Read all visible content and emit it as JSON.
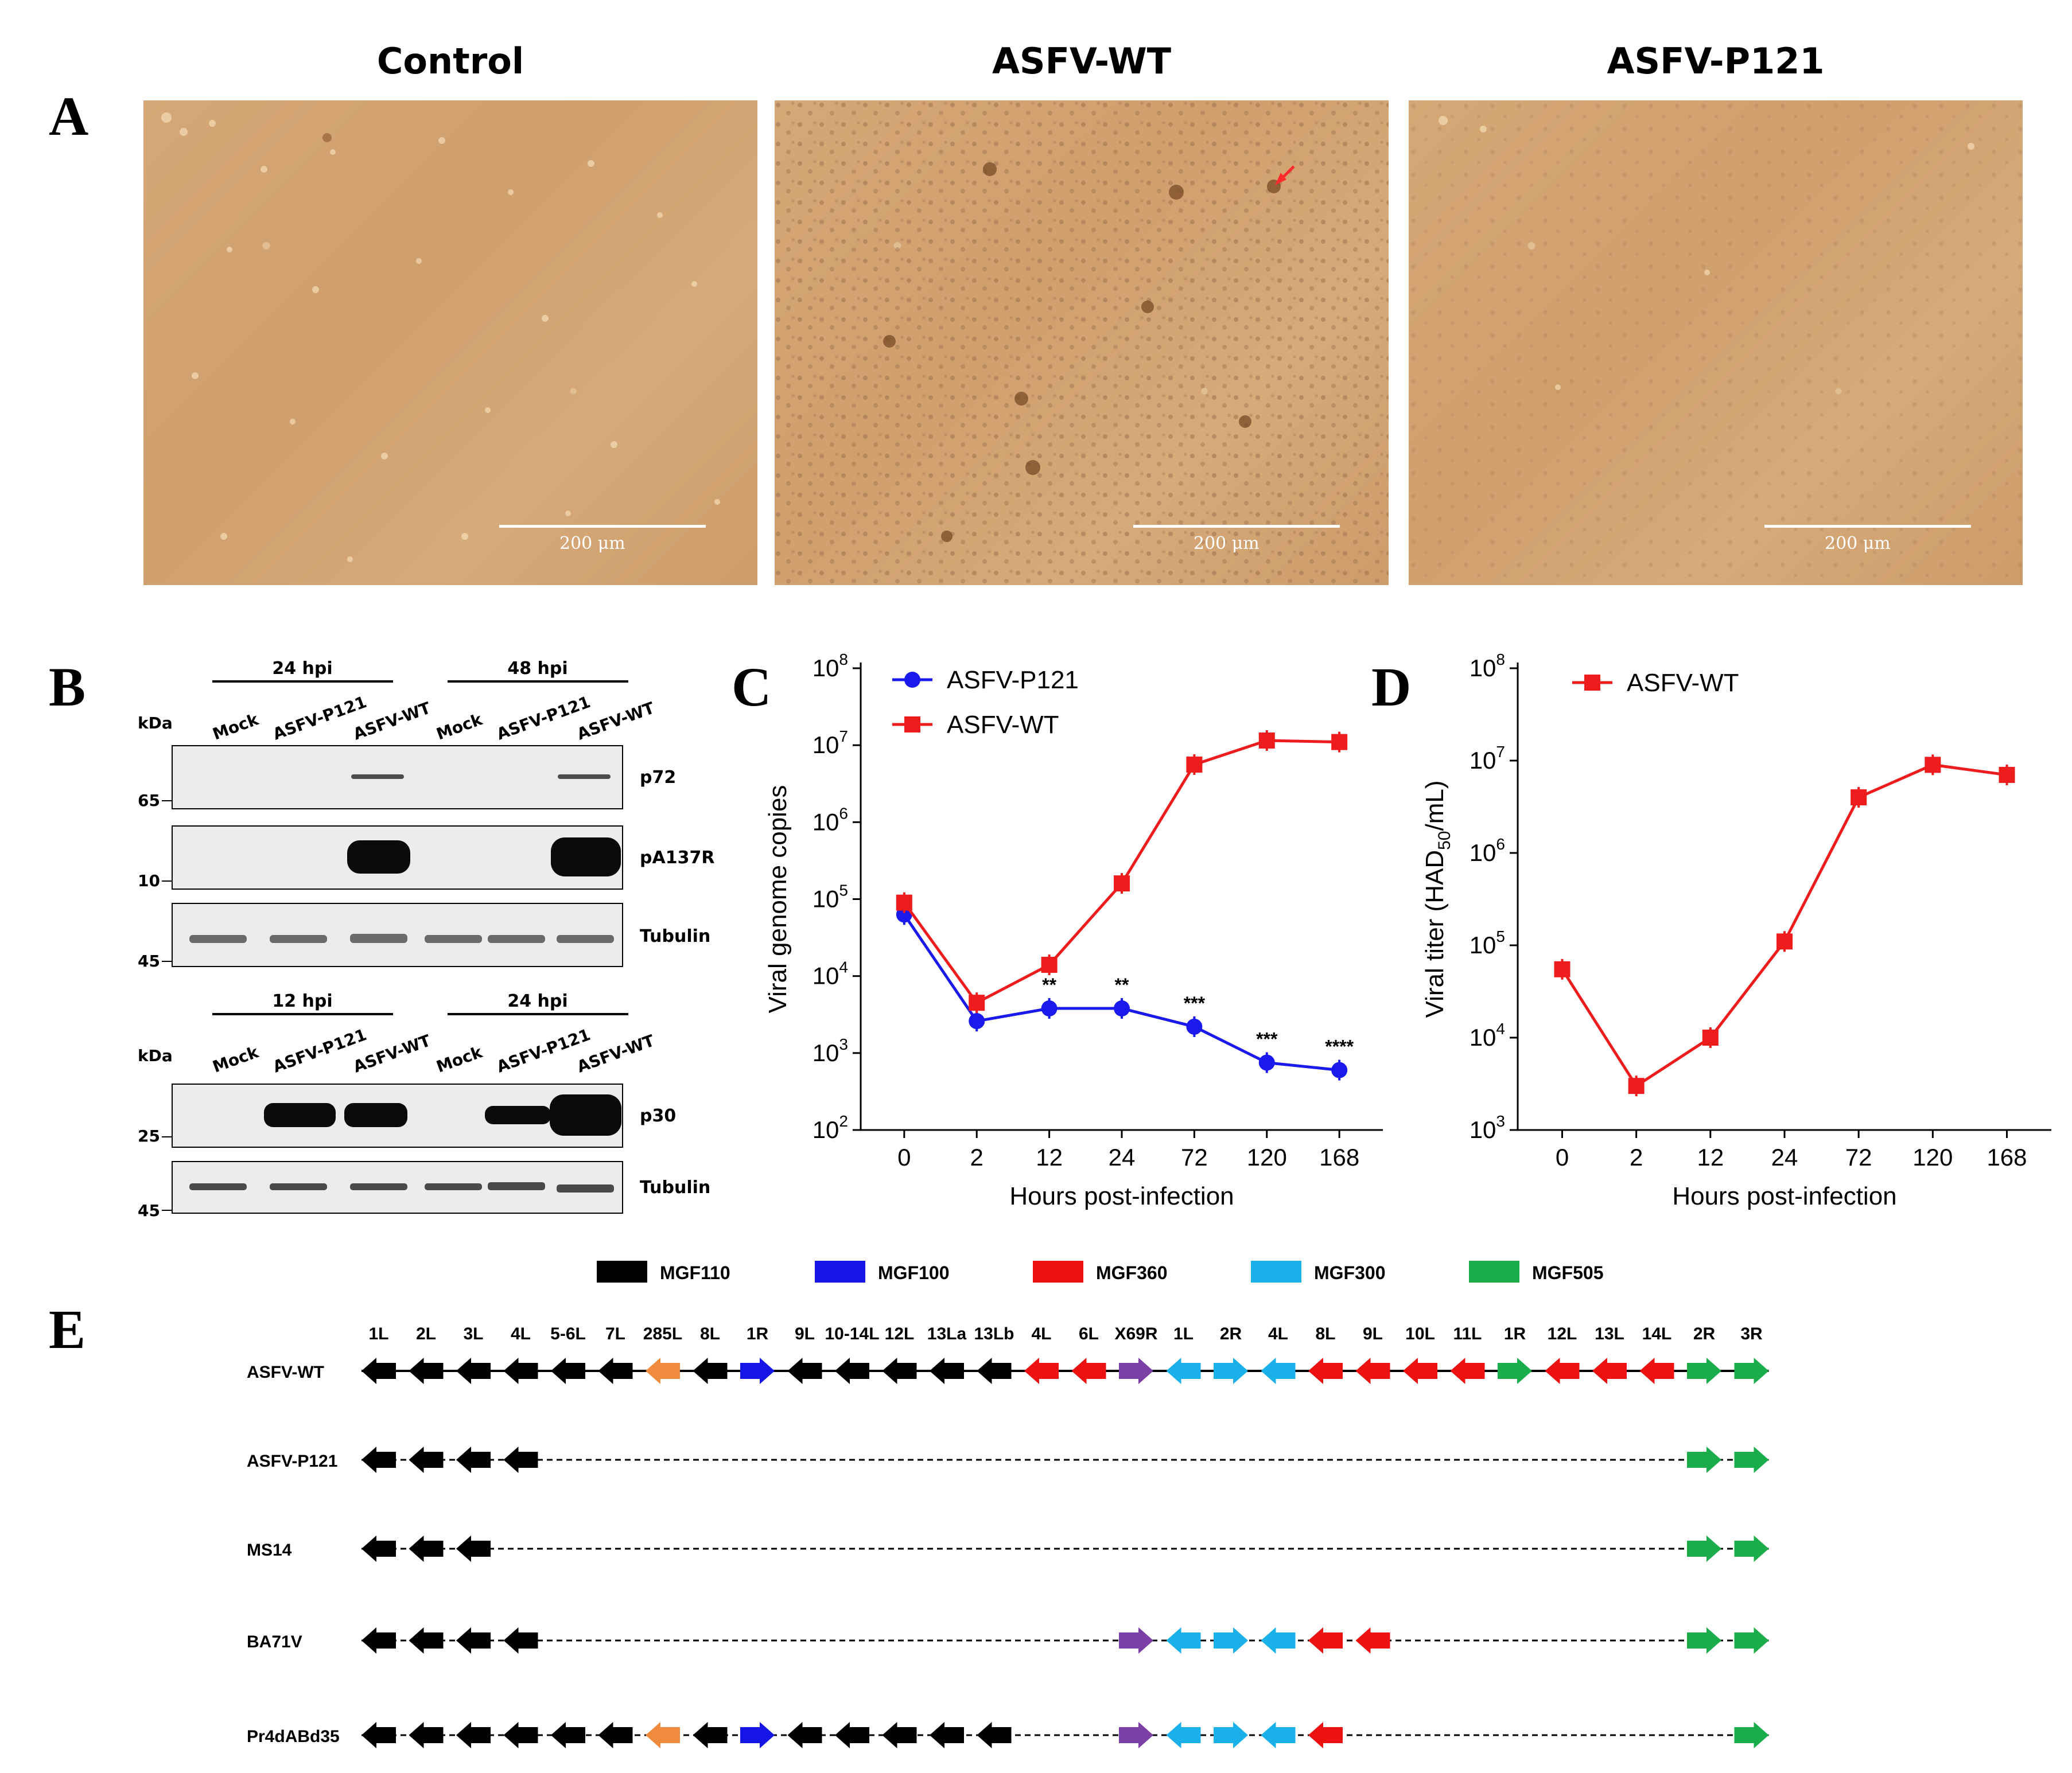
{
  "panels": {
    "A": "A",
    "B": "B",
    "C": "C",
    "D": "D",
    "E": "E"
  },
  "panelA": {
    "images": [
      {
        "title": "Control",
        "scale": "200 μm"
      },
      {
        "title": "ASFV-WT",
        "scale": "200 μm"
      },
      {
        "title": "ASFV-P121",
        "scale": "200 μm"
      }
    ]
  },
  "panelB": {
    "top": {
      "groups": [
        "24 hpi",
        "48 hpi"
      ],
      "lanes": [
        "Mock",
        "ASFV-P121",
        "ASFV-WT",
        "Mock",
        "ASFV-P121",
        "ASFV-WT"
      ],
      "kda": "kDa",
      "blots": [
        {
          "label": "p72",
          "marker": "65"
        },
        {
          "label": "pA137R",
          "marker": "10"
        },
        {
          "label": "Tubulin",
          "marker": "45"
        }
      ]
    },
    "bottom": {
      "groups": [
        "12 hpi",
        "24 hpi"
      ],
      "lanes": [
        "Mock",
        "ASFV-P121",
        "ASFV-WT",
        "Mock",
        "ASFV-P121",
        "ASFV-WT"
      ],
      "kda": "kDa",
      "blots": [
        {
          "label": "p30",
          "marker": "25"
        },
        {
          "label": "Tubulin",
          "marker": "45"
        }
      ]
    }
  },
  "chart_data": [
    {
      "type": "line",
      "panel": "C",
      "xlabel": "Hours post-infection",
      "ylabel": "Viral genome copies",
      "yscale": "log",
      "ylim": [
        100,
        100000000
      ],
      "yticks": [
        {
          "base": "10",
          "exp": "2"
        },
        {
          "base": "10",
          "exp": "3"
        },
        {
          "base": "10",
          "exp": "4"
        },
        {
          "base": "10",
          "exp": "5"
        },
        {
          "base": "10",
          "exp": "6"
        },
        {
          "base": "10",
          "exp": "7"
        },
        {
          "base": "10",
          "exp": "8"
        }
      ],
      "categories": [
        "0",
        "2",
        "12",
        "24",
        "72",
        "120",
        "168"
      ],
      "legend_position": "top-left",
      "series": [
        {
          "name": "ASFV-P121",
          "color": "#1a1aee",
          "marker": "circle",
          "values": [
            63000,
            2600,
            3800,
            3800,
            2200,
            750,
            600
          ]
        },
        {
          "name": "ASFV-WT",
          "color": "#ee1c1c",
          "marker": "square",
          "values": [
            90000,
            4500,
            14000,
            160000,
            5600000,
            11500000,
            11000000
          ]
        }
      ],
      "annotations": [
        "",
        "",
        "**",
        "**",
        "***",
        "***",
        "****"
      ]
    },
    {
      "type": "line",
      "panel": "D",
      "xlabel": "Hours post-infection",
      "ylabel": "Viral titer (HAD",
      "ylabel_sub": "50",
      "ylabel_tail": "/mL)",
      "yscale": "log",
      "ylim": [
        1000,
        100000000
      ],
      "yticks": [
        {
          "base": "10",
          "exp": "3"
        },
        {
          "base": "10",
          "exp": "4"
        },
        {
          "base": "10",
          "exp": "5"
        },
        {
          "base": "10",
          "exp": "6"
        },
        {
          "base": "10",
          "exp": "7"
        },
        {
          "base": "10",
          "exp": "8"
        }
      ],
      "categories": [
        "0",
        "2",
        "12",
        "24",
        "72",
        "120",
        "168"
      ],
      "legend_position": "top-left",
      "series": [
        {
          "name": "ASFV-WT",
          "color": "#ee1c1c",
          "marker": "square",
          "values": [
            55000,
            3000,
            10000,
            110000,
            4000000,
            9000000,
            7000000
          ]
        }
      ]
    }
  ],
  "panelE": {
    "legend": [
      {
        "label": "MGF110",
        "color": "#000000"
      },
      {
        "label": "MGF100",
        "color": "#1515e6"
      },
      {
        "label": "MGF360",
        "color": "#ee1111"
      },
      {
        "label": "MGF300",
        "color": "#1ab1ea"
      },
      {
        "label": "MGF505",
        "color": "#1bad4c"
      }
    ],
    "colors": {
      "black": "#000000",
      "orange": "#f08a3c",
      "blue": "#1515e6",
      "red": "#ee1111",
      "purple": "#7b3fa6",
      "cyan": "#1ab1ea",
      "green": "#1bad4c"
    },
    "genes": [
      {
        "label": "1L",
        "color": "black",
        "dir": "L"
      },
      {
        "label": "2L",
        "color": "black",
        "dir": "L"
      },
      {
        "label": "3L",
        "color": "black",
        "dir": "L"
      },
      {
        "label": "4L",
        "color": "black",
        "dir": "L"
      },
      {
        "label": "5-6L",
        "color": "black",
        "dir": "L"
      },
      {
        "label": "7L",
        "color": "black",
        "dir": "L"
      },
      {
        "label": "285L",
        "color": "orange",
        "dir": "L"
      },
      {
        "label": "8L",
        "color": "black",
        "dir": "L"
      },
      {
        "label": "1R",
        "color": "blue",
        "dir": "R"
      },
      {
        "label": "9L",
        "color": "black",
        "dir": "L"
      },
      {
        "label": "10-14L",
        "color": "black",
        "dir": "L"
      },
      {
        "label": "12L",
        "color": "black",
        "dir": "L"
      },
      {
        "label": "13La",
        "color": "black",
        "dir": "L"
      },
      {
        "label": "13Lb",
        "color": "black",
        "dir": "L"
      },
      {
        "label": "4L",
        "color": "red",
        "dir": "L"
      },
      {
        "label": "6L",
        "color": "red",
        "dir": "L"
      },
      {
        "label": "X69R",
        "color": "purple",
        "dir": "R"
      },
      {
        "label": "1L",
        "color": "cyan",
        "dir": "L"
      },
      {
        "label": "2R",
        "color": "cyan",
        "dir": "R"
      },
      {
        "label": "4L",
        "color": "cyan",
        "dir": "L"
      },
      {
        "label": "8L",
        "color": "red",
        "dir": "L"
      },
      {
        "label": "9L",
        "color": "red",
        "dir": "L"
      },
      {
        "label": "10L",
        "color": "red",
        "dir": "L"
      },
      {
        "label": "11L",
        "color": "red",
        "dir": "L"
      },
      {
        "label": "1R",
        "color": "green",
        "dir": "R"
      },
      {
        "label": "12L",
        "color": "red",
        "dir": "L"
      },
      {
        "label": "13L",
        "color": "red",
        "dir": "L"
      },
      {
        "label": "14L",
        "color": "red",
        "dir": "L"
      },
      {
        "label": "2R",
        "color": "green",
        "dir": "R"
      },
      {
        "label": "3R",
        "color": "green",
        "dir": "R"
      }
    ],
    "rows": [
      {
        "name": "ASFV-WT",
        "present": [
          0,
          1,
          2,
          3,
          4,
          5,
          6,
          7,
          8,
          9,
          10,
          11,
          12,
          13,
          14,
          15,
          16,
          17,
          18,
          19,
          20,
          21,
          22,
          23,
          24,
          25,
          26,
          27,
          28,
          29
        ]
      },
      {
        "name": "ASFV-P121",
        "present": [
          0,
          1,
          2,
          3,
          28,
          29
        ]
      },
      {
        "name": "MS14",
        "present": [
          0,
          1,
          2,
          28,
          29
        ]
      },
      {
        "name": "BA71V",
        "present": [
          0,
          1,
          2,
          3,
          16,
          17,
          18,
          19,
          20,
          21,
          28,
          29
        ]
      },
      {
        "name": "Pr4dABd35",
        "present": [
          0,
          1,
          2,
          3,
          4,
          5,
          6,
          7,
          8,
          9,
          10,
          11,
          12,
          13,
          16,
          17,
          18,
          19,
          20,
          29
        ]
      }
    ]
  }
}
